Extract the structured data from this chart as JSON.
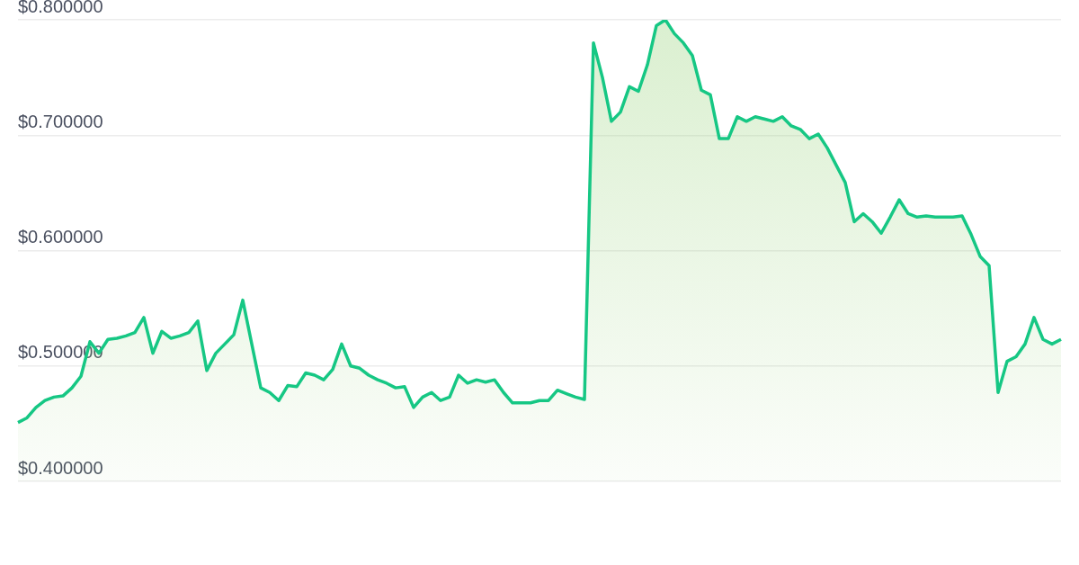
{
  "chart_data": {
    "type": "area",
    "categories": [
      null,
      null,
      null,
      null,
      null,
      null,
      null,
      null,
      null,
      null,
      null,
      null,
      null,
      null,
      null,
      null,
      null,
      null,
      null,
      null,
      null,
      null,
      null,
      null,
      null,
      null,
      null,
      null,
      null,
      null,
      null,
      null,
      null,
      null,
      null,
      null,
      null,
      null,
      null,
      null,
      null,
      null,
      null,
      null,
      null,
      null,
      null,
      null,
      null,
      null,
      null,
      null,
      null,
      null,
      null,
      null,
      null,
      null,
      null,
      null,
      null,
      null,
      null,
      null,
      null,
      null,
      null,
      null,
      null,
      null,
      null,
      null,
      null,
      null,
      null,
      null,
      null,
      null,
      null,
      null,
      null,
      null,
      null,
      null,
      null,
      null,
      null,
      null,
      null,
      null,
      null,
      null,
      null,
      null,
      null,
      null,
      null,
      null,
      null,
      null,
      null,
      null,
      null,
      null,
      null,
      null,
      null,
      null,
      null,
      null,
      null,
      null,
      null,
      null,
      null,
      null,
      null
    ],
    "series": [
      {
        "color": "#16c784",
        "values": [
          0.451,
          0.455,
          0.464,
          0.47,
          0.473,
          0.474,
          0.481,
          0.491,
          0.521,
          0.511,
          0.523,
          0.524,
          0.526,
          0.529,
          0.542,
          0.511,
          0.53,
          0.524,
          0.526,
          0.529,
          0.539,
          0.496,
          0.511,
          0.519,
          0.527,
          0.557,
          0.519,
          0.481,
          0.477,
          0.47,
          0.483,
          0.482,
          0.494,
          0.492,
          0.488,
          0.497,
          0.519,
          0.5,
          0.498,
          0.492,
          0.488,
          0.485,
          0.481,
          0.482,
          0.464,
          0.473,
          0.477,
          0.47,
          0.473,
          0.492,
          0.485,
          0.488,
          0.486,
          0.488,
          0.477,
          0.468,
          0.468,
          0.468,
          0.47,
          0.47,
          0.479,
          0.476,
          0.473,
          0.471,
          0.78,
          0.75,
          0.712,
          0.72,
          0.742,
          0.738,
          0.761,
          0.795,
          0.8,
          0.788,
          0.78,
          0.769,
          0.739,
          0.735,
          0.697,
          0.697,
          0.716,
          0.712,
          0.716,
          0.714,
          0.712,
          0.716,
          0.708,
          0.705,
          0.697,
          0.701,
          0.689,
          0.674,
          0.659,
          0.625,
          0.632,
          0.625,
          0.615,
          0.629,
          0.644,
          0.632,
          0.629,
          0.63,
          0.629,
          0.629,
          0.629,
          0.63,
          0.614,
          0.595,
          0.587,
          0.477,
          0.504,
          0.508,
          0.519,
          0.542,
          0.523,
          0.519,
          0.523
        ]
      }
    ],
    "ylim": [
      0.4,
      0.8
    ],
    "yticks": [
      {
        "value": 0.4,
        "label": "$0.400000"
      },
      {
        "value": 0.5,
        "label": "$0.500000"
      },
      {
        "value": 0.6,
        "label": "$0.600000"
      },
      {
        "value": 0.7,
        "label": "$0.700000"
      },
      {
        "value": 0.8,
        "label": "$0.800000"
      }
    ],
    "grid": "y",
    "legend": false,
    "tick_labels": "y",
    "marker": "none",
    "line_style": "solid"
  }
}
